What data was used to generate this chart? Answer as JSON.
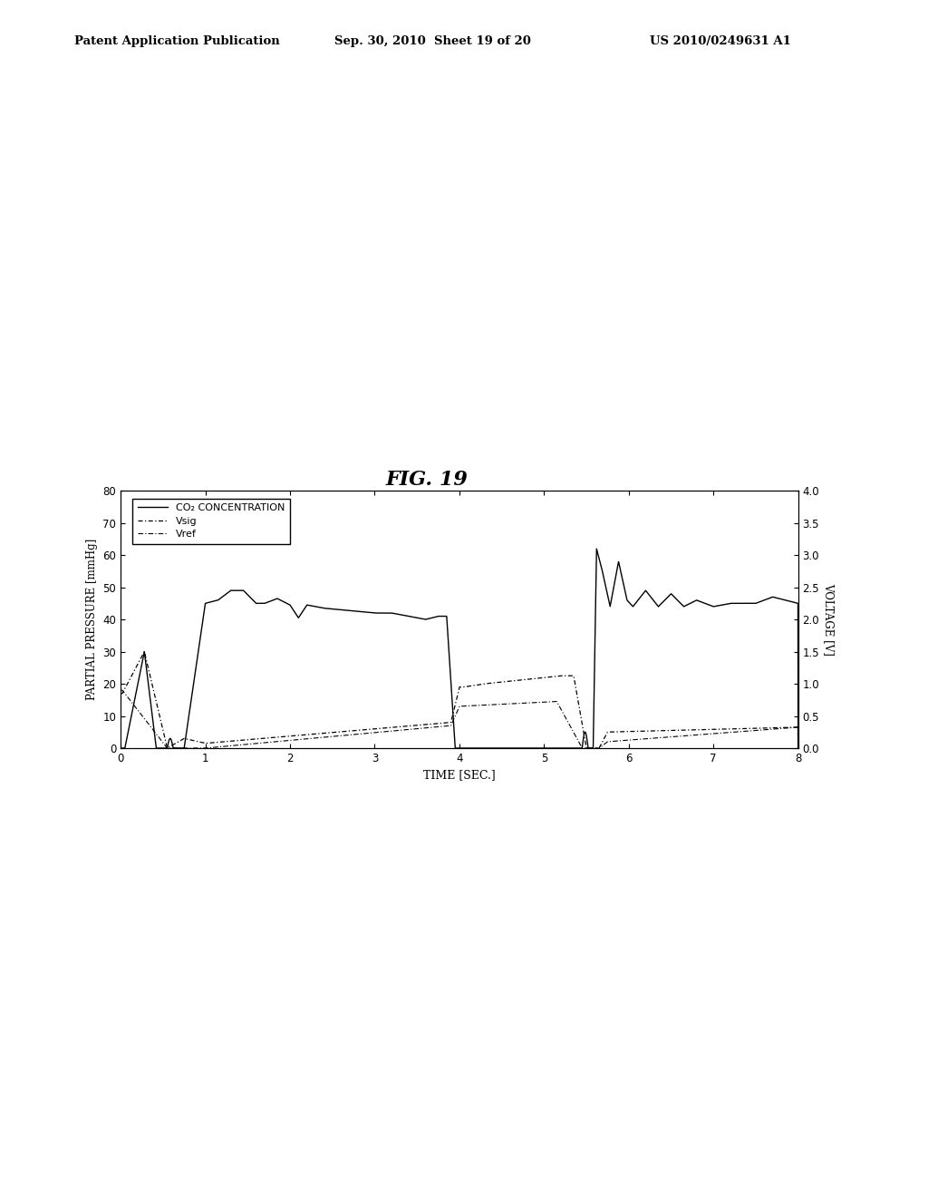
{
  "title": "FIG. 19",
  "header_left": "Patent Application Publication",
  "header_center": "Sep. 30, 2010  Sheet 19 of 20",
  "header_right": "US 2010/0249631 A1",
  "xlabel": "TIME [SEC.]",
  "ylabel_left": "PARTIAL PRESSURE [mmHg]",
  "ylabel_right": "VOLTAGE [V]",
  "xlim": [
    0,
    8
  ],
  "ylim_left": [
    0,
    80
  ],
  "ylim_right": [
    0,
    4
  ],
  "xticks": [
    0,
    1,
    2,
    3,
    4,
    5,
    6,
    7,
    8
  ],
  "yticks_left": [
    0,
    10,
    20,
    30,
    40,
    50,
    60,
    70,
    80
  ],
  "yticks_right": [
    0,
    0.5,
    1,
    1.5,
    2,
    2.5,
    3,
    3.5,
    4
  ],
  "legend_entries": [
    "CO₂ CONCENTRATION",
    "Vsig",
    "Vref"
  ],
  "background_color": "#ffffff",
  "figsize": [
    10.24,
    13.2
  ],
  "dpi": 100
}
